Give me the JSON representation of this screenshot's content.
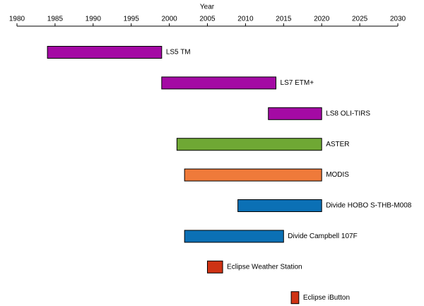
{
  "chart_data": {
    "type": "timeline",
    "x_label": "Year",
    "xlim": [
      1980,
      2030
    ],
    "xticks": [
      1980,
      1985,
      1990,
      1995,
      2000,
      2005,
      2010,
      2015,
      2020,
      2025,
      2030
    ],
    "categories": [
      "LS5 TM",
      "LS7 ETM+",
      "LS8 OLI-TIRS",
      "ASTER",
      "MODIS",
      "Divide HOBO S-THB-M008",
      "Divide Campbell 107F",
      "Eclipse Weather Station",
      "Eclipse iButton"
    ],
    "start": [
      1984,
      1999,
      2013,
      2001,
      2002,
      2009,
      2002,
      2005,
      2016
    ],
    "end": [
      1999,
      2014,
      2020,
      2020,
      2020,
      2020,
      2015,
      2007,
      2017
    ],
    "colors": [
      "#a40aa4",
      "#a40aa4",
      "#a40aa4",
      "#6fa834",
      "#ef7a3a",
      "#0b70b5",
      "#0b70b5",
      "#cf3314",
      "#cf3314"
    ]
  }
}
